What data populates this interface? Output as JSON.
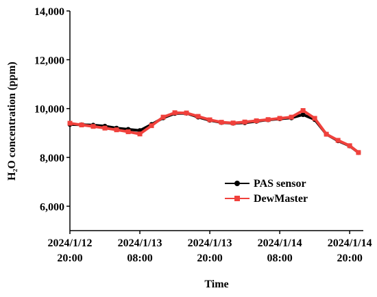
{
  "chart_data": {
    "type": "line",
    "xlabel": "Time",
    "ylabel": "H₂O concentration (ppm)",
    "x": [
      "2024-01-12T20:00",
      "2024-01-12T22:00",
      "2024-01-13T00:00",
      "2024-01-13T02:00",
      "2024-01-13T04:00",
      "2024-01-13T06:00",
      "2024-01-13T08:00",
      "2024-01-13T10:00",
      "2024-01-13T12:00",
      "2024-01-13T14:00",
      "2024-01-13T16:00",
      "2024-01-13T18:00",
      "2024-01-13T20:00",
      "2024-01-13T22:00",
      "2024-01-14T00:00",
      "2024-01-14T02:00",
      "2024-01-14T04:00",
      "2024-01-14T06:00",
      "2024-01-14T08:00",
      "2024-01-14T10:00",
      "2024-01-14T12:00",
      "2024-01-14T14:00",
      "2024-01-14T16:00",
      "2024-01-14T18:00",
      "2024-01-14T20:00",
      "2024-01-14T21:30"
    ],
    "series": [
      {
        "name": "PAS sensor",
        "color": "#000000",
        "marker": "circle",
        "values": [
          9350,
          9340,
          9320,
          9280,
          9200,
          9150,
          9100,
          9350,
          9620,
          9800,
          9810,
          9650,
          9520,
          9430,
          9400,
          9420,
          9480,
          9540,
          9580,
          9620,
          9750,
          9550,
          8950,
          8680,
          8470,
          8200
        ]
      },
      {
        "name": "DewMaster",
        "color": "#f0413c",
        "marker": "square",
        "values": [
          9400,
          9330,
          9270,
          9200,
          9130,
          9050,
          8960,
          9300,
          9650,
          9830,
          9820,
          9680,
          9540,
          9440,
          9410,
          9450,
          9500,
          9550,
          9600,
          9650,
          9920,
          9600,
          8950,
          8700,
          8480,
          8200
        ]
      }
    ],
    "xlim": [
      "2024-01-12T20:00",
      "2024-01-14T22:20"
    ],
    "xticks": [
      {
        "value": "2024-01-12T20:00",
        "label": "2024/1/12\n20:00"
      },
      {
        "value": "2024-01-13T08:00",
        "label": "2024/1/13\n08:00"
      },
      {
        "value": "2024-01-13T20:00",
        "label": "2024/1/13\n20:00"
      },
      {
        "value": "2024-01-14T08:00",
        "label": "2024/1/14\n08:00"
      },
      {
        "value": "2024-01-14T20:00",
        "label": "2024/1/14\n20:00"
      }
    ],
    "ylim": [
      5000,
      14000
    ],
    "yticks": [
      {
        "value": 6000,
        "label": "6,000"
      },
      {
        "value": 8000,
        "label": "8,000"
      },
      {
        "value": 10000,
        "label": "10,000"
      },
      {
        "value": 12000,
        "label": "12,000"
      },
      {
        "value": 14000,
        "label": "14,000"
      }
    ],
    "legend": "lower-right",
    "grid": false
  }
}
